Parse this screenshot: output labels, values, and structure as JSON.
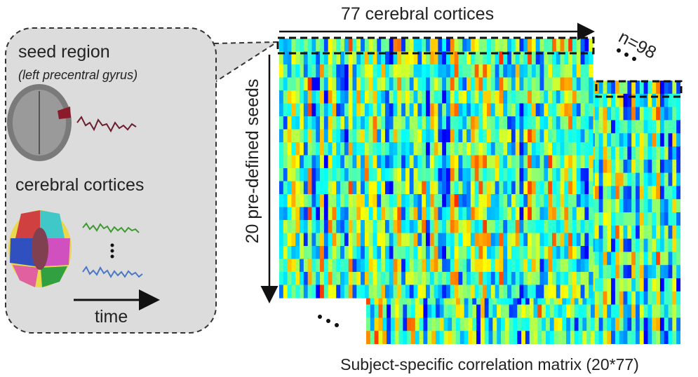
{
  "matrix_title": "77 cerebral cortices",
  "subjects_label": "n=98",
  "seed_panel": {
    "title": "seed region",
    "subtitle": "(left precentral gyrus)"
  },
  "cortices_panel": {
    "title": "cerebral cortices",
    "axis_label": "time"
  },
  "rows_label": "20 pre-defined seeds",
  "caption": "Subject-specific correlation matrix (20*77)"
}
